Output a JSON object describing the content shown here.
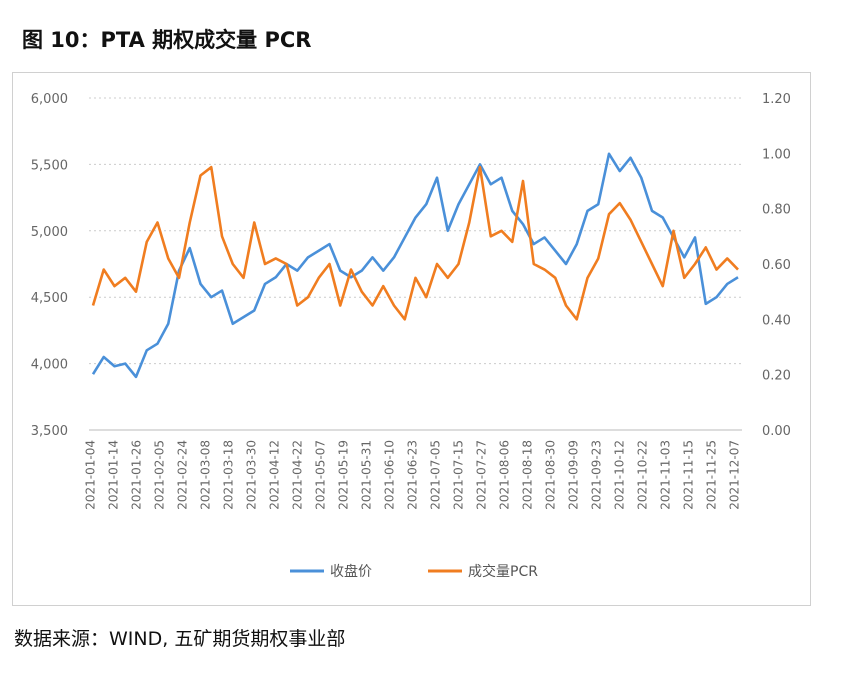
{
  "title": "图 10：PTA 期权成交量 PCR",
  "source": "数据来源：WIND, 五矿期货期权事业部",
  "chart_data": {
    "type": "line",
    "title": "",
    "legend_position": "bottom",
    "grid": true,
    "y_left": {
      "ylim": [
        3500,
        6000
      ],
      "ticks": [
        "3,500",
        "4,000",
        "4,500",
        "5,000",
        "5,500",
        "6,000"
      ]
    },
    "y_right": {
      "ylim": [
        0,
        1.2
      ],
      "ticks": [
        "0.00",
        "0.20",
        "0.40",
        "0.60",
        "0.80",
        "1.00",
        "1.20"
      ]
    },
    "x_tick_labels": [
      "2021-01-04",
      "2021-01-14",
      "2021-01-26",
      "2021-02-05",
      "2021-02-24",
      "2021-03-08",
      "2021-03-18",
      "2021-03-30",
      "2021-04-12",
      "2021-04-22",
      "2021-05-07",
      "2021-05-19",
      "2021-05-31",
      "2021-06-10",
      "2021-06-23",
      "2021-07-05",
      "2021-07-15",
      "2021-07-27",
      "2021-08-06",
      "2021-08-18",
      "2021-08-30",
      "2021-09-09",
      "2021-09-23",
      "2021-10-12",
      "2021-10-22",
      "2021-11-03",
      "2021-11-15",
      "2021-11-25",
      "2021-12-07"
    ],
    "series": [
      {
        "name": "收盘价",
        "axis": "left",
        "color": "#4a90d9",
        "values": [
          3920,
          4050,
          3980,
          4000,
          3900,
          4100,
          4150,
          4300,
          4700,
          4870,
          4600,
          4500,
          4550,
          4300,
          4350,
          4400,
          4600,
          4650,
          4750,
          4700,
          4800,
          4850,
          4900,
          4700,
          4650,
          4700,
          4800,
          4700,
          4800,
          4950,
          5100,
          5200,
          5400,
          5000,
          5200,
          5350,
          5500,
          5350,
          5400,
          5150,
          5050,
          4900,
          4950,
          4850,
          4750,
          4900,
          5150,
          5200,
          5580,
          5450,
          5550,
          5400,
          5150,
          5100,
          4950,
          4800,
          4950,
          4450,
          4500,
          4600,
          4650
        ]
      },
      {
        "name": "成交量PCR",
        "axis": "right",
        "color": "#f07d20",
        "values": [
          0.45,
          0.58,
          0.52,
          0.55,
          0.5,
          0.68,
          0.75,
          0.62,
          0.55,
          0.75,
          0.92,
          0.95,
          0.7,
          0.6,
          0.55,
          0.75,
          0.6,
          0.62,
          0.6,
          0.45,
          0.48,
          0.55,
          0.6,
          0.45,
          0.58,
          0.5,
          0.45,
          0.52,
          0.45,
          0.4,
          0.55,
          0.48,
          0.6,
          0.55,
          0.6,
          0.75,
          0.95,
          0.7,
          0.72,
          0.68,
          0.9,
          0.6,
          0.58,
          0.55,
          0.45,
          0.4,
          0.55,
          0.62,
          0.78,
          0.82,
          0.76,
          0.68,
          0.6,
          0.52,
          0.72,
          0.55,
          0.6,
          0.66,
          0.58,
          0.62,
          0.58
        ]
      }
    ]
  }
}
